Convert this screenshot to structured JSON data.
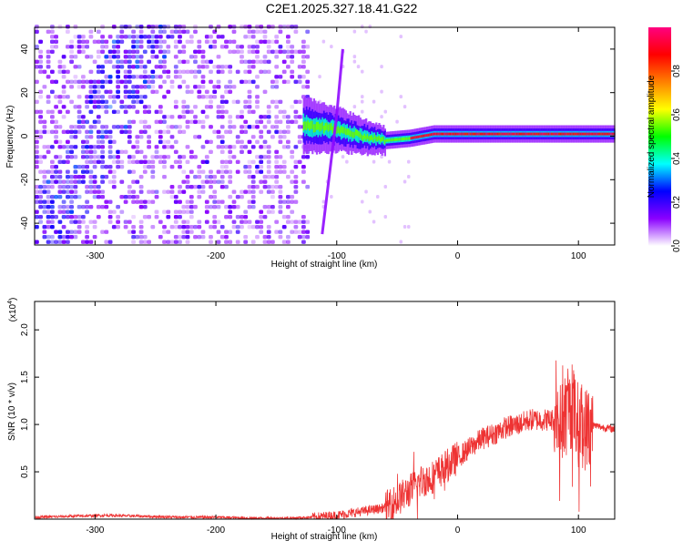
{
  "title": "C2E1.2025.327.18.41.G22",
  "chart_data": [
    {
      "type": "heatmap",
      "xlabel": "Height of straight line (km)",
      "ylabel": "Frequency (Hz)",
      "xlim": [
        -350,
        130
      ],
      "ylim": [
        -50,
        50
      ],
      "xticks": [
        -300,
        -200,
        -100,
        0,
        100
      ],
      "yticks": [
        -40,
        -20,
        0,
        20,
        40
      ],
      "colorbar": {
        "label": "Normalized spectral amplitude",
        "range": [
          0,
          1
        ],
        "ticks": [
          "0.0",
          "0.2",
          "0.4",
          "0.6",
          "0.8"
        ],
        "colormap": [
          "#ffffff",
          "#8a00ff",
          "#0000ff",
          "#00ffff",
          "#00ff00",
          "#ffff00",
          "#ff8000",
          "#ff0000",
          "#ff0080"
        ]
      },
      "features": {
        "noise_region_x": [
          -350,
          -125
        ],
        "noisy_dense_diagonal_start_x": -330,
        "signal_band_start_x": -128,
        "signal_band_center_hz": [
          [
            -128,
            5
          ],
          [
            -100,
            3
          ],
          [
            -80,
            0
          ],
          [
            -60,
            -2
          ],
          [
            -40,
            -1
          ],
          [
            -20,
            1
          ],
          [
            0,
            1
          ],
          [
            50,
            1
          ],
          [
            100,
            1
          ],
          [
            130,
            1
          ]
        ],
        "steep_line": [
          [
            -112,
            -45
          ],
          [
            -100,
            10
          ],
          [
            -95,
            40
          ]
        ]
      }
    },
    {
      "type": "line",
      "xlabel": "Height of straight line (km)",
      "ylabel": "SNR (10 * v/v)",
      "y_multiplier": "(x10",
      "y_multiplier_exp": "4",
      "y_multiplier_close": ")",
      "xlim": [
        -350,
        130
      ],
      "ylim": [
        0,
        2.3
      ],
      "xticks": [
        -300,
        -200,
        -100,
        0,
        100
      ],
      "yticks": [
        "0.5",
        "1.0",
        "1.5",
        "2.0"
      ],
      "color": "#ee3333",
      "series": [
        {
          "x": [
            -350,
            -320,
            -290,
            -260,
            -230,
            -200,
            -170,
            -140,
            -120,
            -100,
            -80,
            -60,
            -50,
            -40,
            -30,
            -20,
            -10,
            0,
            10,
            20,
            30,
            40,
            50,
            60,
            70,
            80,
            85,
            90,
            95,
            100,
            105,
            110,
            120,
            130
          ],
          "values": [
            0.02,
            0.03,
            0.04,
            0.03,
            0.02,
            0.02,
            0.01,
            0.01,
            0.02,
            0.04,
            0.08,
            0.12,
            0.2,
            0.3,
            0.4,
            0.45,
            0.55,
            0.65,
            0.75,
            0.85,
            0.9,
            0.97,
            1.0,
            1.05,
            1.05,
            1.05,
            1.0,
            1.1,
            1.2,
            1.0,
            0.95,
            1.0,
            0.97,
            0.95
          ]
        }
      ]
    }
  ]
}
